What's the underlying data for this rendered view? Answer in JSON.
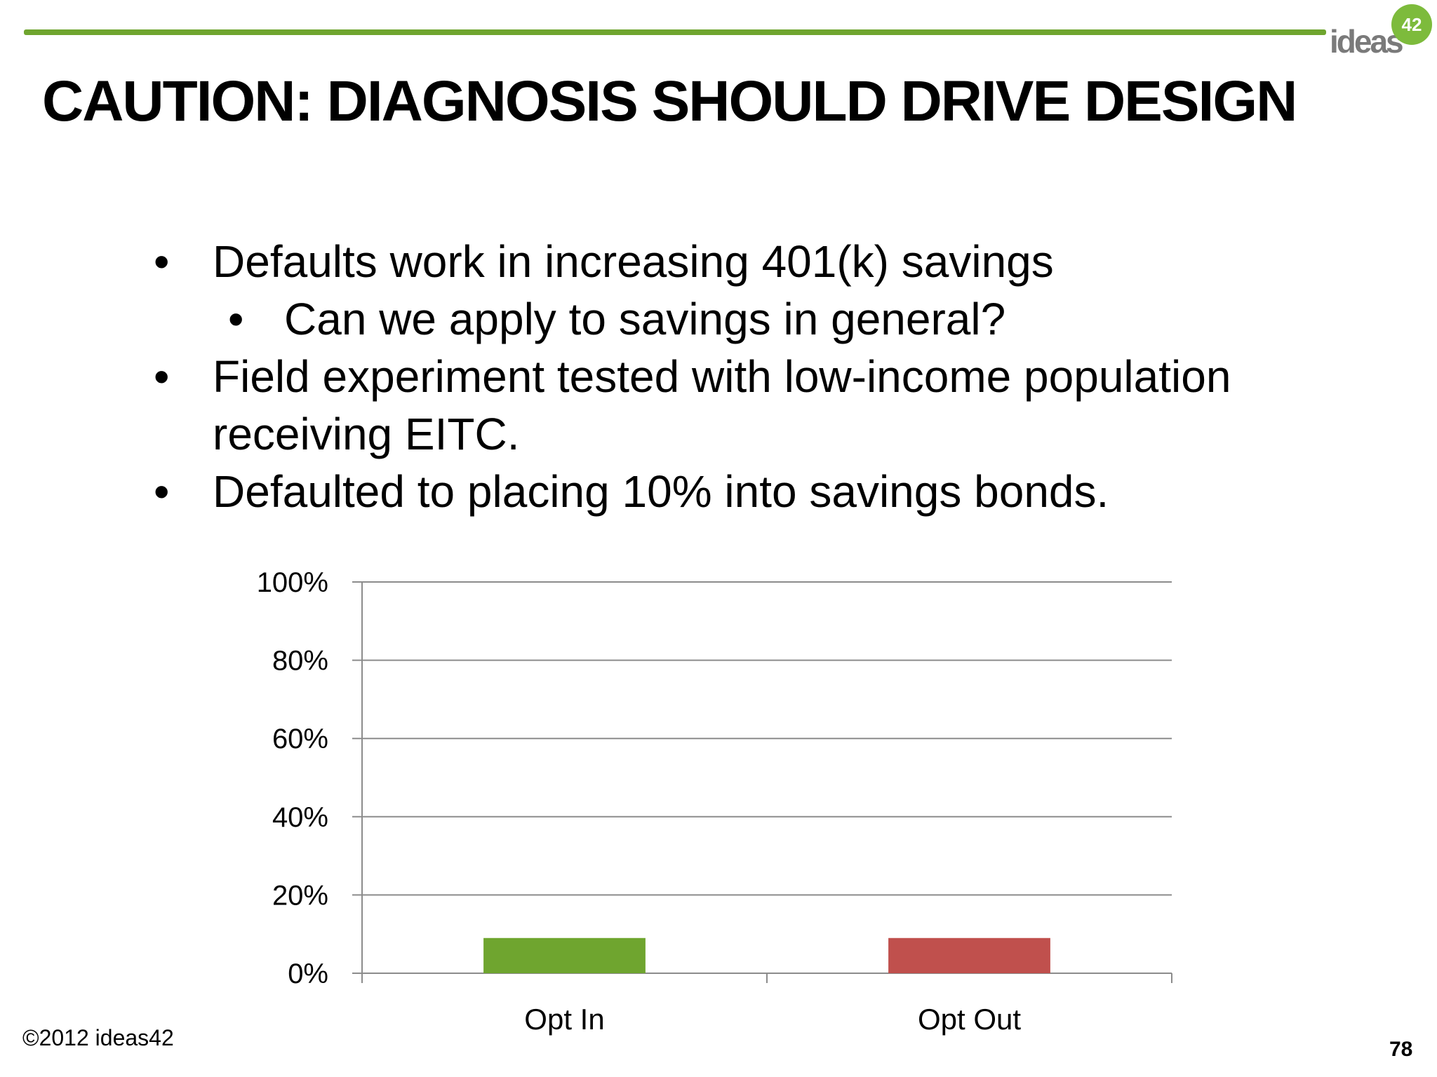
{
  "slide": {
    "title": "CAUTION: DIAGNOSIS SHOULD DRIVE DESIGN",
    "bullets": [
      "Defaults work in increasing 401(k) savings",
      "Can we apply to savings in general?",
      "Field experiment tested with low-income population receiving EITC.",
      "Defaulted to placing 10% into savings bonds."
    ],
    "footer": "©2012 ideas42",
    "page_number": "78"
  },
  "logo": {
    "word": "ideas",
    "badge": "42"
  },
  "colors": {
    "accent_green": "#6fa52f",
    "bar_opt_in": "#6fa52f",
    "bar_opt_out": "#c0504d",
    "gridline": "#8c8c8c",
    "logo_badge": "#7dbb3c"
  },
  "chart_data": {
    "type": "bar",
    "categories": [
      "Opt In",
      "Opt Out"
    ],
    "values": [
      9,
      9
    ],
    "title": "",
    "xlabel": "",
    "ylabel": "",
    "ylim": [
      0,
      100
    ],
    "yticks": [
      "0%",
      "20%",
      "40%",
      "60%",
      "80%",
      "100%"
    ],
    "grid": true,
    "legend": "none"
  }
}
